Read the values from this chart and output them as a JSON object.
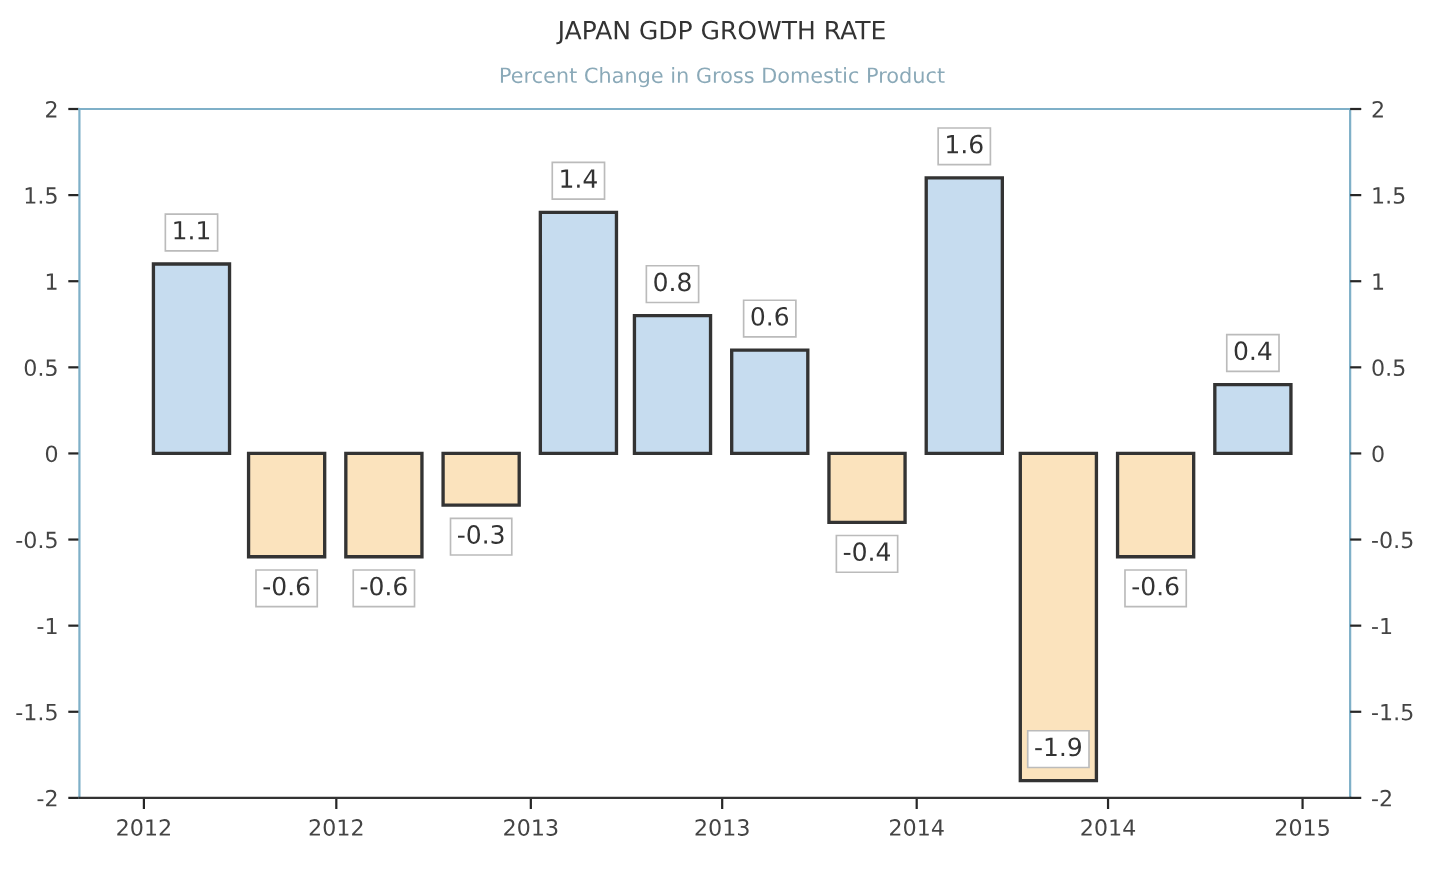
{
  "chart_data": {
    "type": "bar",
    "title": "JAPAN GDP GROWTH RATE",
    "subtitle": "Percent Change in Gross Domestic Product",
    "x": [
      "2012-02-15",
      "2012-05-15",
      "2012-08-15",
      "2012-11-15",
      "2013-02-15",
      "2013-05-15",
      "2013-08-15",
      "2013-11-15",
      "2014-02-15",
      "2014-05-15",
      "2014-08-15",
      "2014-11-15"
    ],
    "values": [
      1.1,
      -0.6,
      -0.6,
      -0.3,
      1.4,
      0.8,
      0.6,
      -0.4,
      1.6,
      -1.9,
      -0.6,
      0.4
    ],
    "colors": [
      "#c6dcef",
      "#fbe3bd",
      "#fbe3bd",
      "#fbe3bd",
      "#c6dcef",
      "#c6dcef",
      "#c6dcef",
      "#fbe3bd",
      "#c6dcef",
      "#fbe3bd",
      "#fbe3bd",
      "#c6dcef"
    ],
    "data_labels": true,
    "xlim": [
      "2011-11-01",
      "2015-02-15"
    ],
    "xticks": [
      {
        "value": "2012-01-01",
        "label": "2012"
      },
      {
        "value": "2012-07-01",
        "label": "2012"
      },
      {
        "value": "2013-01-01",
        "label": "2013"
      },
      {
        "value": "2013-07-01",
        "label": "2013"
      },
      {
        "value": "2014-01-01",
        "label": "2014"
      },
      {
        "value": "2014-07-01",
        "label": "2014"
      },
      {
        "value": "2015-01-01",
        "label": "2015"
      }
    ],
    "ylim": [
      -2,
      2
    ],
    "yticks": [
      -2,
      -1.5,
      -1,
      -0.5,
      0,
      0.5,
      1,
      1.5,
      2
    ],
    "y2lim": [
      -2,
      2
    ],
    "y2ticks": [
      -2,
      -1.5,
      -1,
      -0.5,
      0,
      0.5,
      1,
      1.5,
      2
    ],
    "grid": false,
    "legend": false
  }
}
